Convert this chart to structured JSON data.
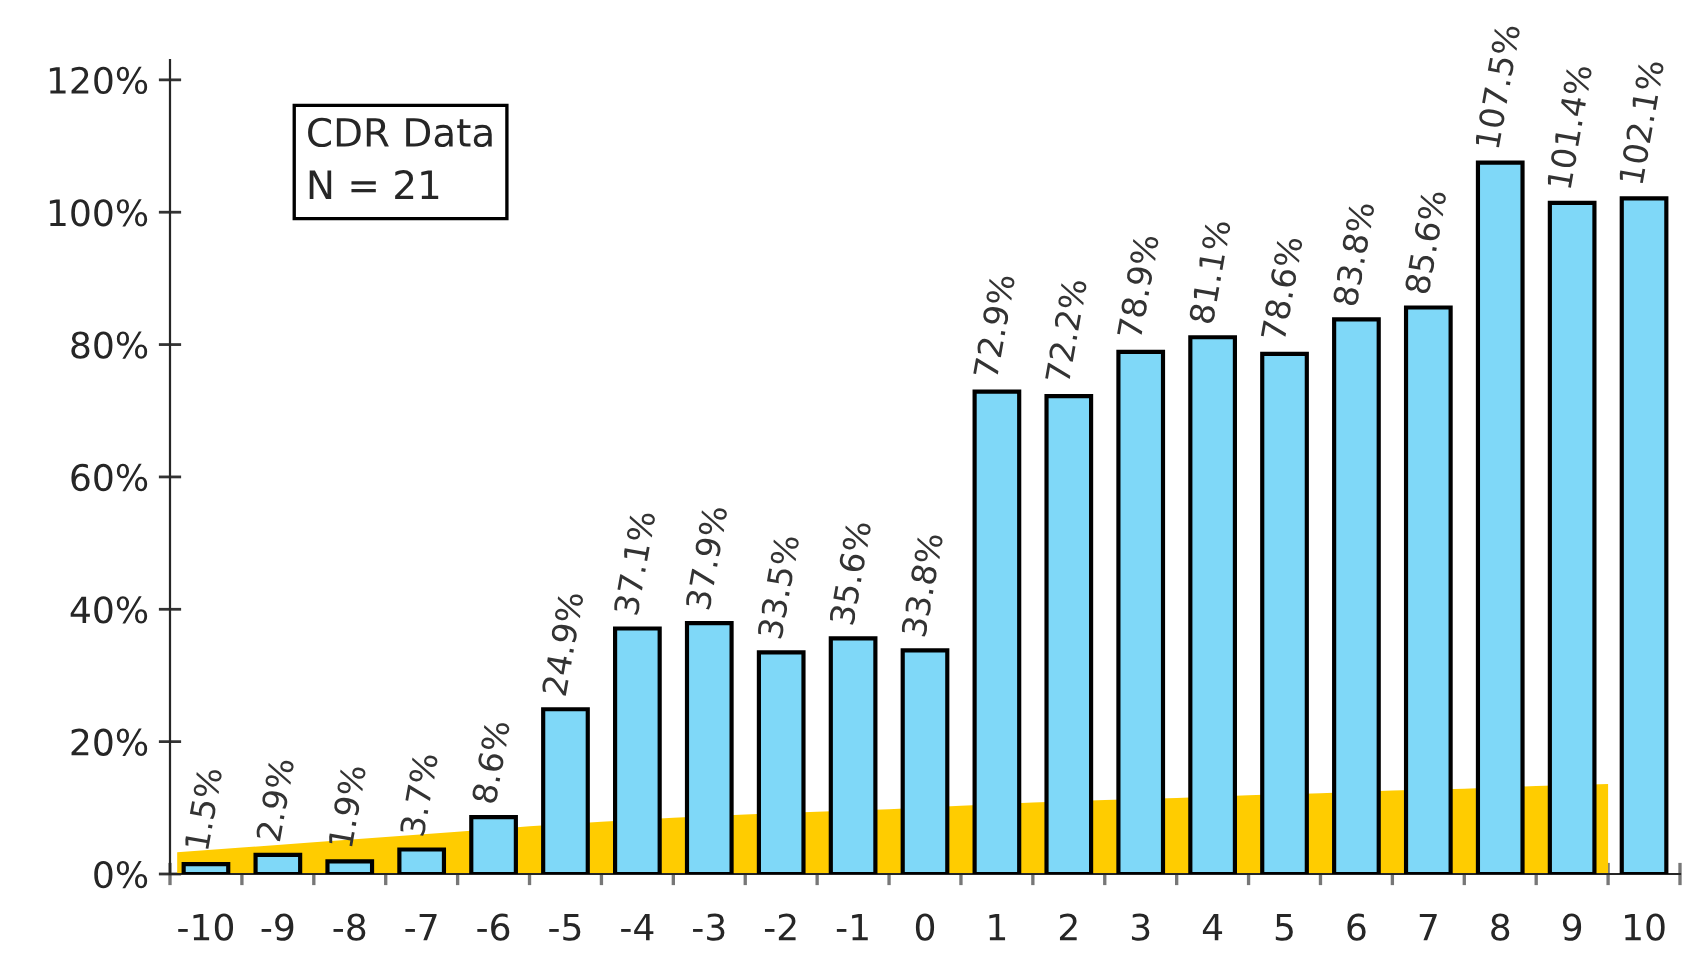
{
  "chart_data": {
    "type": "bar",
    "x": [
      -10,
      -9,
      -8,
      -7,
      -6,
      -5,
      -4,
      -3,
      -2,
      -1,
      0,
      1,
      2,
      3,
      4,
      5,
      6,
      7,
      8,
      9,
      10
    ],
    "series": [
      {
        "type": "area",
        "color": "#ffcc00",
        "x": [
          -10.4,
          -9.5,
          -8.5,
          -7.5,
          -6.5,
          -5.5,
          -4.5,
          -3.5,
          -2.5,
          -1.5,
          -0.5,
          0.5,
          1.5,
          2.5,
          3.5,
          4.5,
          5.5,
          6.5,
          7.5,
          8.5,
          9.5
        ],
        "values": [
          3.3,
          4.0,
          4.8,
          5.6,
          6.4,
          7.2,
          7.9,
          8.5,
          9.0,
          9.4,
          9.8,
          10.3,
          10.8,
          11.2,
          11.5,
          11.9,
          12.2,
          12.6,
          12.9,
          13.3,
          13.6
        ]
      },
      {
        "color": "#7fd8f8",
        "values": [
          1.5,
          2.9,
          1.9,
          3.7,
          8.6,
          24.9,
          37.1,
          37.9,
          33.5,
          35.6,
          33.8,
          72.9,
          72.2,
          78.9,
          81.1,
          78.6,
          83.8,
          85.6,
          107.5,
          101.4,
          102.1
        ],
        "value_labels": [
          "1.5%",
          "2.9%",
          "1.9%",
          "3.7%",
          "8.6%",
          "24.9%",
          "37.1%",
          "37.9%",
          "33.5%",
          "35.6%",
          "33.8%",
          "72.9%",
          "72.2%",
          "78.9%",
          "81.1%",
          "78.6%",
          "83.8%",
          "85.6%",
          "107.5%",
          "101.4%",
          "102.1%"
        ]
      }
    ],
    "xlim": [
      -10.5,
      10.5
    ],
    "xticks": [
      -10,
      -9,
      -8,
      -7,
      -6,
      -5,
      -4,
      -3,
      -2,
      -1,
      0,
      1,
      2,
      3,
      4,
      5,
      6,
      7,
      8,
      9,
      10,
      {
        "value": -10.5,
        "label": null
      },
      {
        "value": -9.5,
        "label": null
      },
      {
        "value": -8.5,
        "label": null
      },
      {
        "value": -7.5,
        "label": null
      },
      {
        "value": -6.5,
        "label": null
      },
      {
        "value": -5.5,
        "label": null
      },
      {
        "value": -4.5,
        "label": null
      },
      {
        "value": -3.5,
        "label": null
      },
      {
        "value": -2.5,
        "label": null
      },
      {
        "value": -1.5,
        "label": null
      },
      {
        "value": -0.5,
        "label": null
      },
      {
        "value": 0.5,
        "label": null
      },
      {
        "value": 1.5,
        "label": null
      },
      {
        "value": 2.5,
        "label": null
      },
      {
        "value": 3.5,
        "label": null
      },
      {
        "value": 4.5,
        "label": null
      },
      {
        "value": 5.5,
        "label": null
      },
      {
        "value": 6.5,
        "label": null
      },
      {
        "value": 7.5,
        "label": null
      },
      {
        "value": 8.5,
        "label": null
      },
      {
        "value": 9.5,
        "label": null
      },
      {
        "value": 10.5,
        "label": null
      }
    ],
    "ylim": [
      0,
      123
    ],
    "yticks": [
      {
        "value": 0,
        "label": "0%"
      },
      {
        "value": 20,
        "label": "20%"
      },
      {
        "value": 40,
        "label": "40%"
      },
      {
        "value": 60,
        "label": "60%"
      },
      {
        "value": 80,
        "label": "80%"
      },
      {
        "value": 100,
        "label": "100%"
      },
      {
        "value": 120,
        "label": "120%"
      }
    ],
    "annotations": [
      "CDR Data\nN = 21"
    ],
    "grid": false
  }
}
